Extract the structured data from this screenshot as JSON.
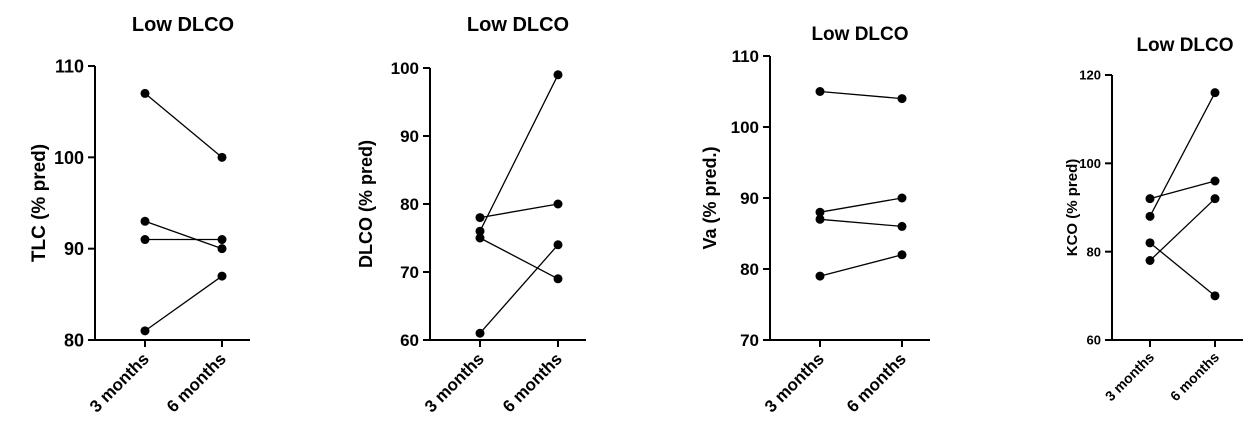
{
  "chart_data": [
    {
      "type": "line",
      "title": "Low DLCO",
      "ylabel": "TLC (% pred)",
      "categories": [
        "3 months",
        "6 months"
      ],
      "ylim": [
        80,
        110
      ],
      "yticks": [
        80,
        90,
        100,
        110
      ],
      "series": [
        {
          "values": [
            107,
            100
          ]
        },
        {
          "values": [
            93,
            90
          ]
        },
        {
          "values": [
            91,
            91
          ]
        },
        {
          "values": [
            81,
            87
          ]
        }
      ]
    },
    {
      "type": "line",
      "title": "Low DLCO",
      "ylabel": "DLCO (% pred)",
      "categories": [
        "3 months",
        "6 months"
      ],
      "ylim": [
        60,
        100
      ],
      "yticks": [
        60,
        70,
        80,
        90,
        100
      ],
      "series": [
        {
          "values": [
            76,
            99
          ]
        },
        {
          "values": [
            78,
            80
          ]
        },
        {
          "values": [
            75,
            69
          ]
        },
        {
          "values": [
            61,
            74
          ]
        }
      ]
    },
    {
      "type": "line",
      "title": "Low DLCO",
      "ylabel": "Va (% pred.)",
      "categories": [
        "3 months",
        "6 months"
      ],
      "ylim": [
        70,
        110
      ],
      "yticks": [
        70,
        80,
        90,
        100,
        110
      ],
      "series": [
        {
          "values": [
            105,
            104
          ]
        },
        {
          "values": [
            88,
            90
          ]
        },
        {
          "values": [
            87,
            86
          ]
        },
        {
          "values": [
            79,
            82
          ]
        }
      ]
    },
    {
      "type": "line",
      "title": "Low DLCO",
      "ylabel": "KCO (% pred)",
      "categories": [
        "3 months",
        "6 months"
      ],
      "ylim": [
        60,
        120
      ],
      "yticks": [
        60,
        80,
        100,
        120
      ],
      "series": [
        {
          "values": [
            88,
            116
          ]
        },
        {
          "values": [
            92,
            96
          ]
        },
        {
          "values": [
            78,
            92
          ]
        },
        {
          "values": [
            82,
            70
          ]
        }
      ]
    }
  ]
}
